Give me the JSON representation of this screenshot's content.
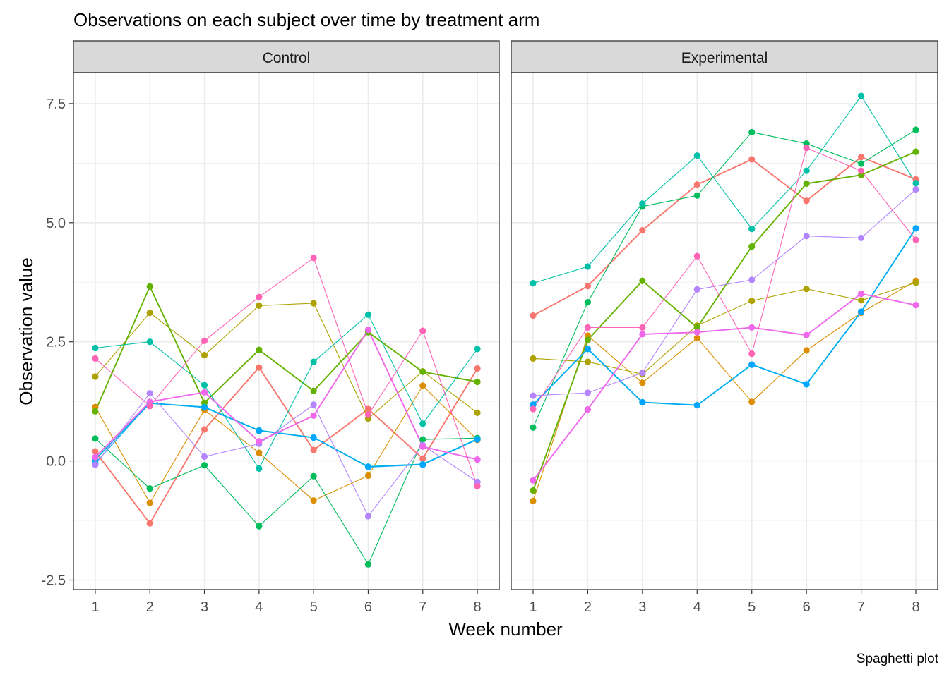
{
  "chart_data": {
    "type": "line",
    "title": "Observations on each subject over time by treatment arm",
    "xlabel": "Week number",
    "ylabel": "Observation value",
    "caption": "Spaghetti plot",
    "x": [
      1,
      2,
      3,
      4,
      5,
      6,
      7,
      8
    ],
    "x_ticks": [
      "1",
      "2",
      "3",
      "4",
      "5",
      "6",
      "7",
      "8"
    ],
    "y_ticks": [
      "-2.5",
      "0.0",
      "2.5",
      "5.0",
      "7.5"
    ],
    "y_tick_values": [
      -2.5,
      0,
      2.5,
      5,
      7.5
    ],
    "ylim": [
      -2.7,
      8.15
    ],
    "xlim": [
      0.6,
      8.4
    ],
    "grid": true,
    "legend": "none",
    "colors": [
      "#F8766D",
      "#DB8E00",
      "#AEA200",
      "#64B200",
      "#00BD5C",
      "#00C1A7",
      "#00BADE",
      "#00A6FF",
      "#B385FF",
      "#EF67EB",
      "#FF63B6"
    ],
    "panels": [
      {
        "name": "Control",
        "series": [
          {
            "color": "#F8766D",
            "values": [
              0.2,
              -1.31,
              0.66,
              1.96,
              0.23,
              1.09,
              0.05,
              1.94
            ]
          },
          {
            "color": "#DB8E00",
            "values": [
              1.13,
              -0.88,
              1.07,
              0.17,
              -0.83,
              -0.31,
              1.58,
              0.44
            ]
          },
          {
            "color": "#AEA200",
            "values": [
              1.77,
              3.11,
              2.22,
              3.26,
              3.31,
              0.89,
              1.88,
              1.01
            ]
          },
          {
            "color": "#64B200",
            "values": [
              1.04,
              3.66,
              1.22,
              2.33,
              1.47,
              2.7,
              1.87,
              1.66
            ]
          },
          {
            "color": "#00BD5C",
            "values": [
              0.47,
              -0.58,
              -0.09,
              -1.37,
              -0.32,
              -2.17,
              0.45,
              0.48
            ]
          },
          {
            "color": "#00C1A7",
            "values": [
              2.37,
              2.5,
              1.59,
              -0.16,
              2.08,
              3.07,
              0.78,
              2.35
            ]
          },
          {
            "color": "#00BADE",
            "values": [
              0.03,
              1.21,
              1.13,
              0.64,
              0.49,
              -0.12,
              -0.07,
              0.46
            ]
          },
          {
            "color": "#00A6FF",
            "values": [
              -0.05,
              1.22,
              1.12,
              0.63,
              0.49,
              -0.13,
              -0.08,
              0.45
            ]
          },
          {
            "color": "#B385FF",
            "values": [
              -0.08,
              1.42,
              0.09,
              0.36,
              1.18,
              -1.16,
              0.33,
              -0.44
            ]
          },
          {
            "color": "#EF67EB",
            "values": [
              0.08,
              1.24,
              1.44,
              0.41,
              0.95,
              2.75,
              0.3,
              0.03
            ]
          },
          {
            "color": "#FF63B6",
            "values": [
              2.15,
              1.15,
              2.52,
              3.44,
              4.26,
              0.97,
              2.73,
              -0.53
            ]
          }
        ]
      },
      {
        "name": "Experimental",
        "series": [
          {
            "color": "#F8766D",
            "values": [
              3.05,
              3.67,
              4.84,
              5.8,
              6.33,
              5.46,
              6.38,
              5.91
            ]
          },
          {
            "color": "#DB8E00",
            "values": [
              -0.84,
              2.63,
              1.64,
              2.58,
              1.24,
              2.32,
              3.11,
              3.78
            ]
          },
          {
            "color": "#AEA200",
            "values": [
              2.15,
              2.08,
              1.82,
              2.84,
              3.36,
              3.61,
              3.37,
              3.74
            ]
          },
          {
            "color": "#64B200",
            "values": [
              -0.62,
              2.54,
              3.78,
              2.8,
              4.5,
              5.82,
              6.0,
              6.49
            ]
          },
          {
            "color": "#00BD5C",
            "values": [
              0.7,
              3.33,
              5.34,
              5.57,
              6.9,
              6.66,
              6.24,
              6.95
            ]
          },
          {
            "color": "#00C1A7",
            "values": [
              3.73,
              4.08,
              5.4,
              6.41,
              4.87,
              6.09,
              7.66,
              5.83
            ]
          },
          {
            "color": "#00BADE",
            "values": [
              1.18,
              2.35,
              1.23,
              1.17,
              2.02,
              1.61,
              3.13,
              4.88
            ]
          },
          {
            "color": "#00A6FF",
            "values": [
              1.18,
              2.35,
              1.23,
              1.17,
              2.02,
              1.61,
              3.13,
              4.88
            ]
          },
          {
            "color": "#B385FF",
            "values": [
              1.37,
              1.43,
              1.85,
              3.6,
              3.8,
              4.72,
              4.68,
              5.7
            ]
          },
          {
            "color": "#EF67EB",
            "values": [
              -0.41,
              1.08,
              2.66,
              2.7,
              2.8,
              2.64,
              3.51,
              3.27
            ]
          },
          {
            "color": "#FF63B6",
            "values": [
              1.09,
              2.8,
              2.8,
              4.3,
              2.25,
              6.57,
              6.09,
              4.64
            ]
          }
        ]
      }
    ]
  }
}
